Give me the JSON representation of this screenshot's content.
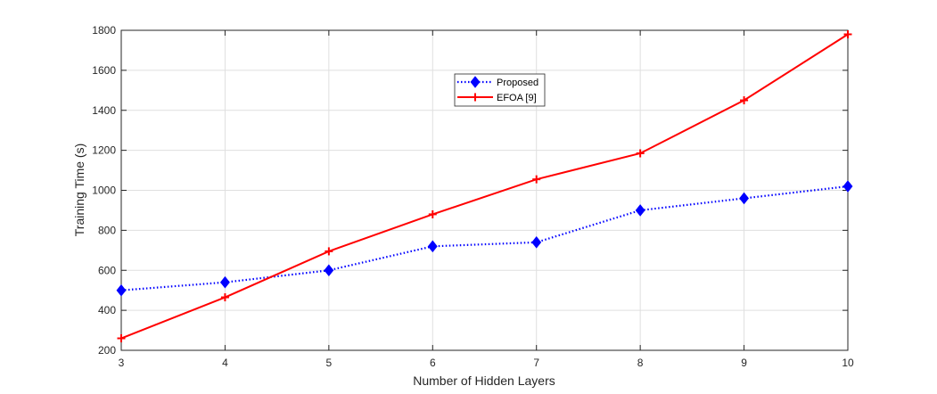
{
  "chart_data": {
    "type": "line",
    "title": "",
    "xlabel": "Number of Hidden Layers",
    "ylabel": "Training Time (s)",
    "x": [
      3,
      4,
      5,
      6,
      7,
      8,
      9,
      10
    ],
    "xlim": [
      3,
      10
    ],
    "ylim": [
      200,
      1800
    ],
    "xticks": [
      "3",
      "4",
      "5",
      "6",
      "7",
      "8",
      "9",
      "10"
    ],
    "yticks": [
      "200",
      "400",
      "600",
      "800",
      "1000",
      "1200",
      "1400",
      "1600",
      "1800"
    ],
    "grid": true,
    "legend_position": "top-center",
    "series": [
      {
        "name": "Proposed",
        "values": [
          500,
          540,
          600,
          720,
          740,
          900,
          960,
          1020
        ],
        "color": "#0000ff",
        "line_style": "dotted",
        "marker": "diamond"
      },
      {
        "name": "EFOA [9]",
        "values": [
          260,
          465,
          695,
          880,
          1055,
          1185,
          1450,
          1780
        ],
        "color": "#ff0000",
        "line_style": "solid",
        "marker": "plus"
      }
    ]
  }
}
